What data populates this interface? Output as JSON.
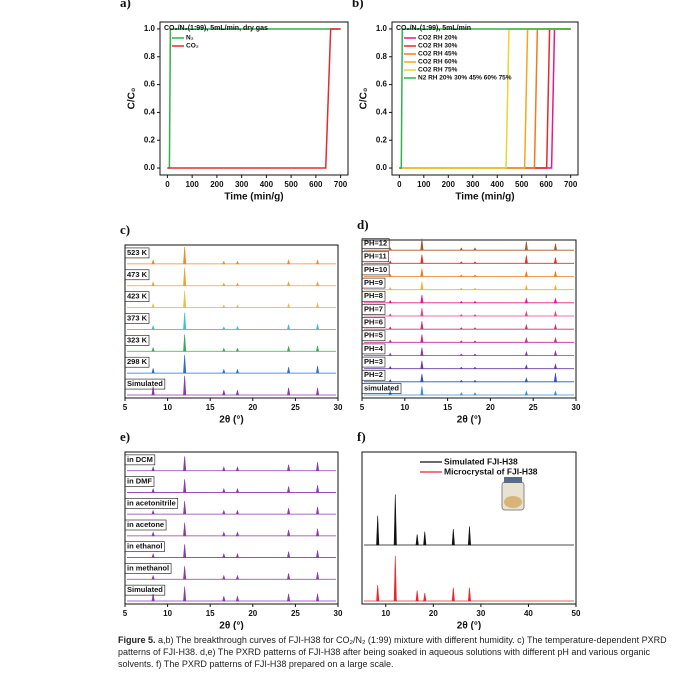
{
  "chart_data": [
    {
      "type": "line",
      "label": "a)",
      "title": "CO₂/N₂(1:99), 5mL/min, dry gas",
      "xlabel": "Time (min/g)",
      "ylabel": "C/C₀",
      "xlim": [
        -30,
        730
      ],
      "xticks": [
        0,
        100,
        200,
        300,
        400,
        500,
        600,
        700
      ],
      "ylim": [
        -0.05,
        1.05
      ],
      "yticks": [
        {
          "value": 0,
          "label": "0.0"
        },
        0.2,
        0.4,
        0.6,
        0.8,
        {
          "value": 1,
          "label": "1.0"
        }
      ],
      "series": [
        {
          "name": "N₂",
          "color": "#2db34a",
          "x": [
            0,
            8,
            12,
            700
          ],
          "values": [
            0,
            0,
            1,
            1
          ]
        },
        {
          "name": "CO₂",
          "color": "#e8282e",
          "x": [
            0,
            640,
            660,
            700
          ],
          "values": [
            0,
            0,
            1,
            1
          ]
        }
      ]
    },
    {
      "type": "line",
      "label": "b)",
      "title": "CO₂/N₂(1:99), 5mL/min",
      "xlabel": "Time (min/g)",
      "ylabel": "C/C₀",
      "xlim": [
        -30,
        730
      ],
      "xticks": [
        0,
        100,
        200,
        300,
        400,
        500,
        600,
        700
      ],
      "ylim": [
        -0.05,
        1.05
      ],
      "yticks": [
        {
          "value": 0,
          "label": "0.0"
        },
        0.2,
        0.4,
        0.6,
        0.8,
        {
          "value": 1,
          "label": "1.0"
        }
      ],
      "series": [
        {
          "name": "CO2 RH 20%",
          "color": "#e6198c",
          "x": [
            0,
            622,
            634,
            700
          ],
          "values": [
            0,
            0,
            1,
            1
          ]
        },
        {
          "name": "CO2 RH 30%",
          "color": "#e8282e",
          "x": [
            0,
            602,
            614,
            700
          ],
          "values": [
            0,
            0,
            1,
            1
          ]
        },
        {
          "name": "CO2 RH 45%",
          "color": "#f07a22",
          "x": [
            0,
            552,
            564,
            700
          ],
          "values": [
            0,
            0,
            1,
            1
          ]
        },
        {
          "name": "CO2 RH 60%",
          "color": "#f2a81e",
          "x": [
            0,
            512,
            524,
            700
          ],
          "values": [
            0,
            0,
            1,
            1
          ]
        },
        {
          "name": "CO2 RH 75%",
          "color": "#e8d631",
          "x": [
            0,
            436,
            448,
            700
          ],
          "values": [
            0,
            0,
            1,
            1
          ]
        },
        {
          "name": "N2 RH 20% 30% 45% 60% 75%",
          "color": "#2db34a",
          "x": [
            0,
            8,
            12,
            700
          ],
          "values": [
            0,
            0,
            1,
            1
          ]
        }
      ]
    },
    {
      "type": "spectrum",
      "label": "c)",
      "xlabel": "2θ (°)",
      "xlim": [
        5,
        30
      ],
      "xticks": [
        5,
        10,
        15,
        20,
        25,
        30
      ],
      "x": [
        8.3,
        12.0,
        16.6,
        18.2,
        24.2,
        27.6
      ],
      "series": [
        {
          "name": "523 K",
          "color": "#f08a24",
          "values": [
            15,
            70,
            10,
            10,
            15,
            15
          ]
        },
        {
          "name": "473 K",
          "color": "#f2a030",
          "values": [
            15,
            75,
            10,
            10,
            15,
            15
          ]
        },
        {
          "name": "423 K",
          "color": "#e8c33a",
          "values": [
            15,
            70,
            10,
            10,
            15,
            18
          ]
        },
        {
          "name": "373 K",
          "color": "#3cc2d2",
          "values": [
            15,
            70,
            10,
            12,
            20,
            22
          ]
        },
        {
          "name": "323 K",
          "color": "#3aa95a",
          "values": [
            15,
            70,
            12,
            12,
            20,
            22
          ]
        },
        {
          "name": "298 K",
          "color": "#2f6fc4",
          "values": [
            20,
            75,
            15,
            15,
            25,
            30
          ]
        },
        {
          "name": "Simulated",
          "color": "#8b3aa8",
          "values": [
            35,
            80,
            20,
            20,
            30,
            30
          ]
        }
      ]
    },
    {
      "type": "spectrum",
      "label": "d)",
      "xlabel": "2θ (°)",
      "xlim": [
        5,
        30
      ],
      "xticks": [
        5,
        10,
        15,
        20,
        25,
        30
      ],
      "x": [
        8.3,
        12.0,
        16.6,
        18.2,
        24.2,
        27.6
      ],
      "series": [
        {
          "name": "PH=12",
          "color": "#a05a2c",
          "values": [
            15,
            80,
            15,
            15,
            60,
            45
          ]
        },
        {
          "name": "PH=11",
          "color": "#e8282e",
          "values": [
            15,
            60,
            10,
            10,
            55,
            40
          ]
        },
        {
          "name": "PH=10",
          "color": "#f07a22",
          "values": [
            15,
            55,
            10,
            10,
            35,
            35
          ]
        },
        {
          "name": "PH=9",
          "color": "#f2b52a",
          "values": [
            15,
            55,
            10,
            10,
            30,
            30
          ]
        },
        {
          "name": "PH=8",
          "color": "#e6198c",
          "values": [
            15,
            55,
            10,
            10,
            30,
            30
          ]
        },
        {
          "name": "PH=7",
          "color": "#e8458a",
          "values": [
            15,
            55,
            10,
            10,
            30,
            30
          ]
        },
        {
          "name": "PH=6",
          "color": "#d0306a",
          "values": [
            15,
            55,
            10,
            10,
            30,
            30
          ]
        },
        {
          "name": "PH=5",
          "color": "#c42a8e",
          "values": [
            15,
            55,
            10,
            10,
            30,
            30
          ]
        },
        {
          "name": "PH=4",
          "color": "#8b3aa8",
          "values": [
            15,
            55,
            10,
            10,
            25,
            30
          ]
        },
        {
          "name": "PH=3",
          "color": "#6a3aa8",
          "values": [
            15,
            55,
            10,
            10,
            25,
            30
          ]
        },
        {
          "name": "PH=2",
          "color": "#2f4fc4",
          "values": [
            15,
            55,
            10,
            10,
            25,
            60
          ]
        },
        {
          "name": "simulated",
          "color": "#3a8fd0",
          "values": [
            30,
            60,
            15,
            15,
            25,
            25
          ]
        }
      ]
    },
    {
      "type": "spectrum",
      "label": "e)",
      "xlabel": "2θ (°)",
      "xlim": [
        5,
        30
      ],
      "xticks": [
        5,
        10,
        15,
        20,
        25,
        30
      ],
      "x": [
        8.3,
        12.0,
        16.6,
        18.2,
        24.2,
        27.6
      ],
      "series": [
        {
          "name": "in DCM",
          "color": "#8b3aa8",
          "values": [
            15,
            60,
            15,
            15,
            25,
            35
          ]
        },
        {
          "name": "in DMF",
          "color": "#8b3aa8",
          "values": [
            15,
            55,
            15,
            15,
            25,
            30
          ]
        },
        {
          "name": "in acetonitrile",
          "color": "#8b3aa8",
          "values": [
            15,
            55,
            15,
            15,
            25,
            30
          ]
        },
        {
          "name": "in acetone",
          "color": "#8b3aa8",
          "values": [
            15,
            55,
            15,
            15,
            25,
            30
          ]
        },
        {
          "name": "in ethanol",
          "color": "#8b3aa8",
          "values": [
            15,
            55,
            15,
            15,
            25,
            30
          ]
        },
        {
          "name": "in methanol",
          "color": "#8b3aa8",
          "values": [
            15,
            55,
            15,
            15,
            25,
            30
          ]
        },
        {
          "name": "Simulated",
          "color": "#8b3aa8",
          "values": [
            30,
            60,
            20,
            20,
            30,
            30
          ]
        }
      ]
    },
    {
      "type": "spectrum",
      "label": "f)",
      "xlabel": "2θ (°)",
      "xlim": [
        5,
        50
      ],
      "xticks": [
        10,
        20,
        30,
        40,
        50
      ],
      "legend": "upper left",
      "x": [
        8.3,
        12.0,
        16.6,
        18.2,
        24.2,
        27.6
      ],
      "series": [
        {
          "name": "Simulated FJI-H38",
          "color": "#111111",
          "values": [
            55,
            95,
            20,
            25,
            30,
            35
          ]
        },
        {
          "name": "Microcrystal of FJI-H38",
          "color": "#e8282e",
          "values": [
            30,
            85,
            20,
            15,
            25,
            25
          ]
        }
      ]
    }
  ],
  "caption": {
    "lead": "Figure 5.",
    "text": "a,b) The breakthrough curves of FJI-H38 for CO₂/N₂ (1:99) mixture with different humidity. c) The temperature-dependent PXRD patterns of FJI-H38. d,e) The PXRD patterns of FJI-H38 after being soaked in aqueous solutions with different pH and various organic solvents. f) The PXRD patterns of FJI-H38 prepared on a large scale."
  }
}
